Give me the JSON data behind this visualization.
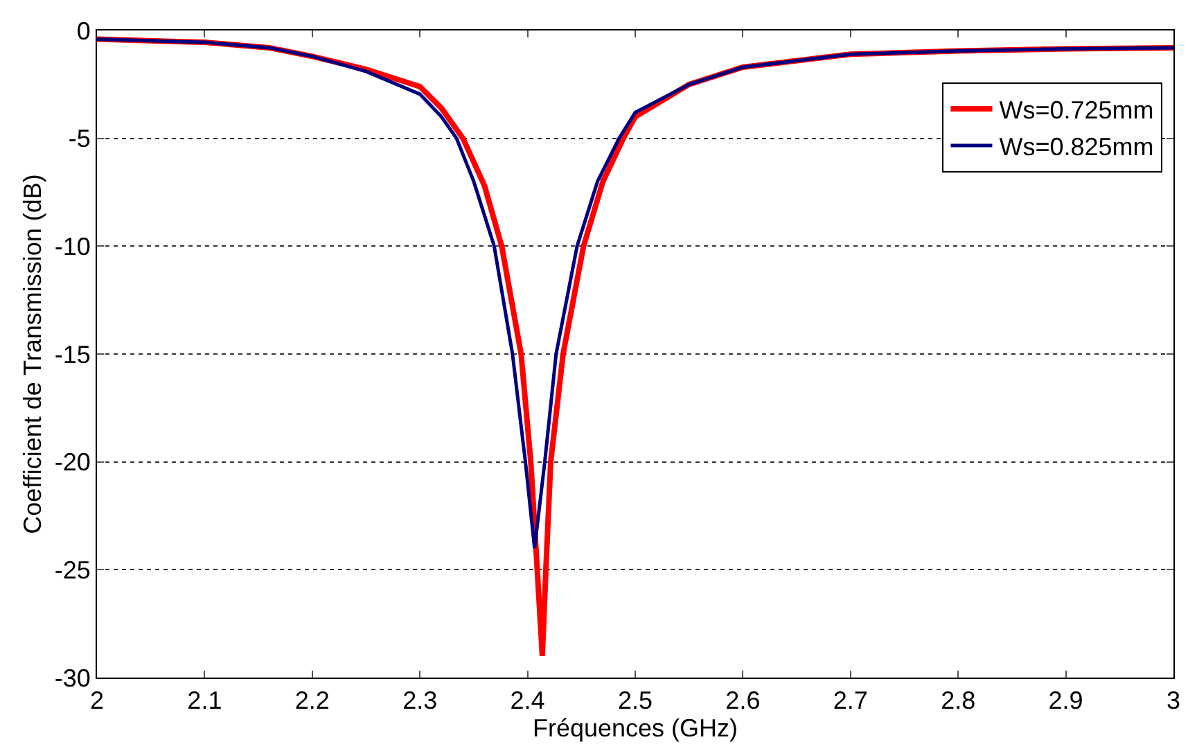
{
  "chart_data": {
    "type": "line",
    "xlabel": "Fréquences (GHz)",
    "ylabel": "Coefficient de Transmission (dB)",
    "xlim": [
      2,
      3
    ],
    "xticks": [
      2,
      2.1,
      2.2,
      2.3,
      2.4,
      2.5,
      2.6,
      2.7,
      2.8,
      2.9,
      3
    ],
    "ylim": [
      -30,
      0
    ],
    "yticks": [
      -30,
      -25,
      -20,
      -15,
      -10,
      -5,
      0
    ],
    "grid": "y",
    "legend": "top right",
    "line_style": "solid",
    "marker": "none",
    "series": [
      {
        "name": "Ws=0.725mm",
        "color": "#ff0000",
        "x": [
          2,
          2.1,
          2.16,
          2.2,
          2.25,
          2.3,
          2.32,
          2.34,
          2.36,
          2.376,
          2.394,
          2.403,
          2.409,
          2.4137,
          2.417,
          2.4215,
          2.433,
          2.452,
          2.47,
          2.489,
          2.5,
          2.55,
          2.6,
          2.7,
          2.8,
          2.9,
          3
        ],
        "values": [
          -0.4,
          -0.55,
          -0.8,
          -1.2,
          -1.8,
          -2.6,
          -3.6,
          -5,
          -7.2,
          -10,
          -15,
          -20,
          -25,
          -29,
          -25,
          -20,
          -15,
          -10,
          -7,
          -5,
          -4,
          -2.5,
          -1.7,
          -1.1,
          -0.95,
          -0.85,
          -0.8
        ]
      },
      {
        "name": "Ws=0.825mm",
        "color": "#000080",
        "x": [
          2,
          2.1,
          2.16,
          2.2,
          2.25,
          2.3,
          2.32,
          2.334,
          2.35,
          2.369,
          2.386,
          2.398,
          2.4065,
          2.416,
          2.4265,
          2.446,
          2.465,
          2.485,
          2.5,
          2.55,
          2.6,
          2.7,
          2.8,
          2.9,
          3
        ],
        "values": [
          -0.4,
          -0.55,
          -0.8,
          -1.2,
          -1.9,
          -2.95,
          -4,
          -5,
          -7,
          -10,
          -15,
          -20,
          -24,
          -20,
          -15,
          -10,
          -7,
          -5,
          -3.8,
          -2.5,
          -1.7,
          -1.1,
          -0.95,
          -0.85,
          -0.8
        ]
      }
    ]
  }
}
